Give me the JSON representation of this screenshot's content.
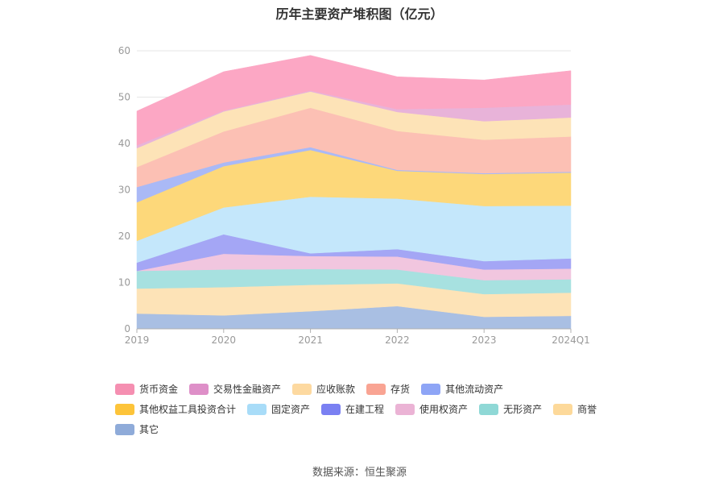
{
  "chart_data": {
    "type": "area",
    "title": "历年主要资产堆积图（亿元）",
    "categories": [
      "2019",
      "2020",
      "2021",
      "2022",
      "2023",
      "2024Q1"
    ],
    "ylim": [
      0,
      60
    ],
    "yticks": [
      0,
      10,
      20,
      30,
      40,
      50,
      60
    ],
    "grid": true,
    "legend_position": "bottom",
    "series": [
      {
        "name": "其它",
        "color": "#a9bfe3",
        "values": [
          3.3,
          2.9,
          3.8,
          4.9,
          2.6,
          2.8
        ]
      },
      {
        "name": "商誉",
        "color": "#fde3b7",
        "values": [
          5.4,
          6.1,
          5.7,
          4.9,
          4.9,
          5.0
        ]
      },
      {
        "name": "无形资产",
        "color": "#a7e1e0",
        "values": [
          3.8,
          3.8,
          3.4,
          3.0,
          3.0,
          2.9
        ]
      },
      {
        "name": "使用权资产",
        "color": "#f1c6df",
        "values": [
          0.0,
          3.4,
          2.8,
          2.8,
          2.3,
          2.3
        ]
      },
      {
        "name": "在建工程",
        "color": "#a4a6f5",
        "values": [
          1.8,
          4.2,
          0.6,
          1.6,
          1.8,
          2.2
        ]
      },
      {
        "name": "固定资产",
        "color": "#c4e7fb",
        "values": [
          4.7,
          5.8,
          12.2,
          10.9,
          11.9,
          11.4
        ]
      },
      {
        "name": "其他权益工具投资合计",
        "color": "#fdd87a",
        "values": [
          8.3,
          8.9,
          10.1,
          6.0,
          6.9,
          7.1
        ]
      },
      {
        "name": "其他流动资产",
        "color": "#aab9f6",
        "values": [
          3.3,
          0.8,
          0.6,
          0.2,
          0.2,
          0.2
        ]
      },
      {
        "name": "存货",
        "color": "#fcc0b4",
        "values": [
          4.3,
          6.7,
          8.5,
          8.4,
          7.2,
          7.6
        ]
      },
      {
        "name": "应收账款",
        "color": "#fde3b7",
        "values": [
          4.1,
          4.3,
          3.5,
          4.1,
          4.0,
          4.1
        ]
      },
      {
        "name": "交易性金融资产",
        "color": "#e8b3d9",
        "values": [
          0.6,
          0.2,
          0.2,
          0.6,
          2.9,
          2.8
        ]
      },
      {
        "name": "货币资金",
        "color": "#fca7c4",
        "values": [
          7.4,
          8.4,
          7.6,
          7.0,
          6.0,
          7.3
        ]
      }
    ],
    "legend": [
      {
        "name": "货币资金",
        "color": "#f58fb1"
      },
      {
        "name": "交易性金融资产",
        "color": "#de8fc8"
      },
      {
        "name": "应收账款",
        "color": "#fdd9a0"
      },
      {
        "name": "存货",
        "color": "#f9a493"
      },
      {
        "name": "其他流动资产",
        "color": "#8ea5f6"
      },
      {
        "name": "其他权益工具投资合计",
        "color": "#fdc43a"
      },
      {
        "name": "固定资产",
        "color": "#a8dcf8"
      },
      {
        "name": "在建工程",
        "color": "#7a80f2"
      },
      {
        "name": "使用权资产",
        "color": "#ebb3d5"
      },
      {
        "name": "无形资产",
        "color": "#8fd8d6"
      },
      {
        "name": "商誉",
        "color": "#fdd99a"
      },
      {
        "name": "其它",
        "color": "#8fabd9"
      }
    ]
  },
  "source_note": "数据来源：恒生聚源"
}
